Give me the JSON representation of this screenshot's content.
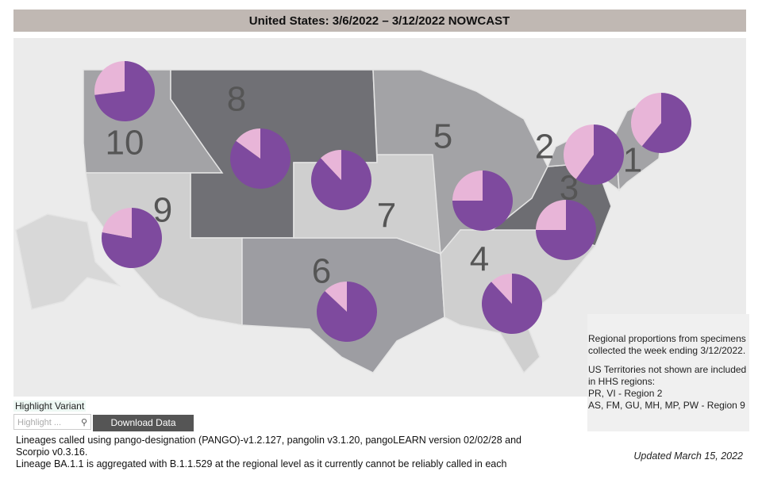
{
  "header": {
    "title": "United States: 3/6/2022 – 3/12/2022 NOWCAST"
  },
  "chart_data": {
    "type": "pie",
    "colors": [
      "#7e4a9e",
      "#e8b5d8"
    ],
    "regions": [
      {
        "label": "1",
        "values": [
          61,
          39
        ]
      },
      {
        "label": "2",
        "values": [
          60,
          40
        ]
      },
      {
        "label": "3",
        "values": [
          75,
          25
        ]
      },
      {
        "label": "4",
        "values": [
          88,
          12
        ]
      },
      {
        "label": "5",
        "values": [
          75,
          25
        ]
      },
      {
        "label": "6",
        "values": [
          87,
          13
        ]
      },
      {
        "label": "7",
        "values": [
          88,
          12
        ]
      },
      {
        "label": "8",
        "values": [
          85,
          15
        ]
      },
      {
        "label": "9",
        "values": [
          78,
          22
        ]
      },
      {
        "label": "10",
        "values": [
          73,
          27
        ]
      }
    ]
  },
  "note": {
    "lines": [
      "Regional proportions from specimens",
      "collected the week ending 3/12/2022.",
      "US Territories not shown are included",
      "in HHS regions:",
      "PR, VI - Region 2",
      "AS, FM, GU, MH, MP, PW - Region 9"
    ]
  },
  "controls": {
    "highlight_label": "Highlight Variant",
    "search_placeholder": "Highlight ...",
    "download": "Download Data"
  },
  "footer": {
    "lines": [
      "Lineages called using pango-designation (PANGO)-v1.2.127, pangolin v3.1.20, pangoLEARN version 02/02/28 and",
      "Scorpio v0.3.16.",
      "Lineage BA.1.1 is aggregated with B.1.1.529 at the regional level as it currently cannot be reliably called in each"
    ],
    "updated": "Updated March 15, 2022"
  }
}
